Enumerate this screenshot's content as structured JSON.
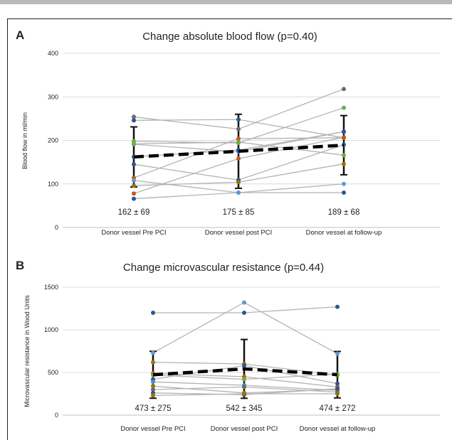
{
  "chart_data": [
    {
      "type": "line",
      "panel": "A",
      "title": "Change absolute blood flow (p=0.40)",
      "ylabel": "Blood flow in ml/min",
      "ylim": [
        0,
        400
      ],
      "yticks": [
        0,
        100,
        200,
        300,
        400
      ],
      "categories": [
        "Donor vessel Pre PCI",
        "Donor vessel post PCI",
        "Donor vessel at follow-up"
      ],
      "stat_labels": [
        "162 ± 69",
        "175 ± 85",
        "189 ± 68"
      ],
      "mean": [
        162,
        175,
        189
      ],
      "sd": [
        69,
        85,
        68
      ],
      "patients": [
        {
          "color": "#6b6b6b",
          "values": [
            254,
            226,
            318
          ]
        },
        {
          "color": "#2e5597",
          "values": [
            246,
            248,
            206
          ]
        },
        {
          "color": "#70ad47",
          "values": [
            198,
            194,
            275
          ]
        },
        {
          "color": "#4a8ccd",
          "values": [
            191,
            174,
            220
          ]
        },
        {
          "color": "#2e5597",
          "values": [
            162,
            178,
            220
          ]
        },
        {
          "color": "#2e5597",
          "values": [
            145,
            109,
            190
          ]
        },
        {
          "color": "#c55a11",
          "values": [
            114,
            204,
            206
          ]
        },
        {
          "color": "#997300",
          "values": [
            96,
            104,
            146
          ]
        },
        {
          "color": "#c55a11",
          "values": [
            78,
            158,
            207
          ]
        },
        {
          "color": "#2e5597",
          "values": [
            66,
            80,
            80
          ]
        },
        {
          "color": "#5b9bd5",
          "values": [
            108,
            80,
            100
          ]
        },
        {
          "color": "#70ad47",
          "values": [
            192,
            196,
            166
          ]
        }
      ]
    },
    {
      "type": "line",
      "panel": "B",
      "title": "Change microvascular resistance (p=0.44)",
      "ylabel": "Microvascular resistance in Wood Units",
      "ylim": [
        0,
        1500
      ],
      "yticks": [
        0,
        500,
        1000,
        1500
      ],
      "categories": [
        "Donor vessel Pre PCI",
        "Donor vessel post PCI",
        "Donor vessel at follow-up"
      ],
      "stat_labels": [
        "473 ± 275",
        "542 ± 345",
        "474 ± 272"
      ],
      "mean": [
        473,
        542,
        474
      ],
      "sd": [
        275,
        345,
        272
      ],
      "patients": [
        {
          "color": "#2e5597",
          "values": [
            1200,
            1200,
            1270
          ]
        },
        {
          "color": "#5b9bd5",
          "values": [
            730,
            1320,
            720
          ]
        },
        {
          "color": "#997300",
          "values": [
            620,
            600,
            470
          ]
        },
        {
          "color": "#c55a11",
          "values": [
            490,
            450,
            330
          ]
        },
        {
          "color": "#70ad47",
          "values": [
            470,
            420,
            480
          ]
        },
        {
          "color": "#2e5597",
          "values": [
            420,
            580,
            370
          ]
        },
        {
          "color": "#4a8ccd",
          "values": [
            390,
            350,
            290
          ]
        },
        {
          "color": "#997300",
          "values": [
            340,
            260,
            300
          ]
        },
        {
          "color": "#6b6b6b",
          "values": [
            300,
            330,
            270
          ]
        },
        {
          "color": "#2e5597",
          "values": [
            260,
            240,
            310
          ]
        },
        {
          "color": "#997300",
          "values": [
            230,
            250,
            250
          ]
        }
      ]
    }
  ]
}
